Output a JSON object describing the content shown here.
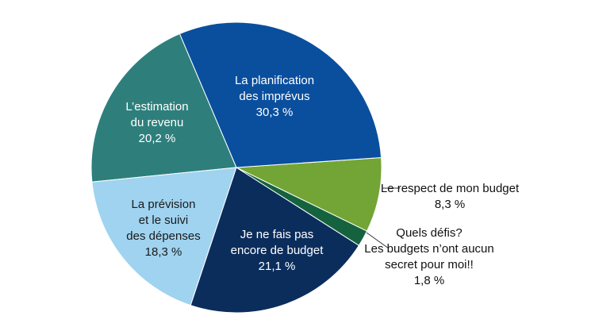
{
  "chart_data": {
    "type": "pie",
    "categories": [
      "La planification\ndes imprévus",
      "Le respect de mon budget",
      "Quels défis?\nLes budgets n’ont aucun\nsecret pour moi!!",
      "Je ne fais pas\nencore de budget",
      "La prévision\net le suivi\ndes dépenses",
      "L’estimation\ndu revenu"
    ],
    "values": [
      30.3,
      8.3,
      1.8,
      21.1,
      18.3,
      20.2
    ],
    "value_labels": [
      "30,3 %",
      "8,3 %",
      "1,8 %",
      "21,1 %",
      "18,3 %",
      "20,2 %"
    ],
    "colors": [
      "#0a4f9e",
      "#72a535",
      "#15623f",
      "#0b2d5c",
      "#9fd3f0",
      "#2e7f7c"
    ]
  }
}
